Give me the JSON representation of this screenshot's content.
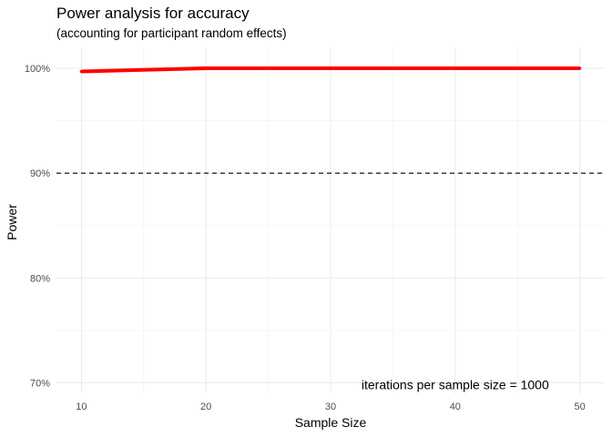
{
  "chart_data": {
    "type": "line",
    "title": "Power analysis for accuracy",
    "subtitle": "(accounting for participant random effects)",
    "xlabel": "Sample Size",
    "ylabel": "Power",
    "x_ticks": [
      10,
      20,
      30,
      40,
      50
    ],
    "y_ticks": [
      {
        "value": 0.7,
        "label": "70%"
      },
      {
        "value": 0.8,
        "label": "80%"
      },
      {
        "value": 0.9,
        "label": "90%"
      },
      {
        "value": 1.0,
        "label": "100%"
      }
    ],
    "xlim": [
      8,
      52
    ],
    "ylim": [
      0.69,
      1.02
    ],
    "grid": true,
    "series": [
      {
        "color": "#ff0000",
        "points": [
          {
            "x": 10,
            "y": 0.997
          },
          {
            "x": 20,
            "y": 1.0
          },
          {
            "x": 30,
            "y": 1.0
          },
          {
            "x": 40,
            "y": 1.0
          },
          {
            "x": 50,
            "y": 1.0
          }
        ]
      }
    ],
    "reference_line": {
      "y": 0.9,
      "style": "dashed",
      "color": "#000000"
    },
    "annotation": {
      "text": "iterations per sample size = 1000",
      "x": 40,
      "y": 0.7
    }
  }
}
